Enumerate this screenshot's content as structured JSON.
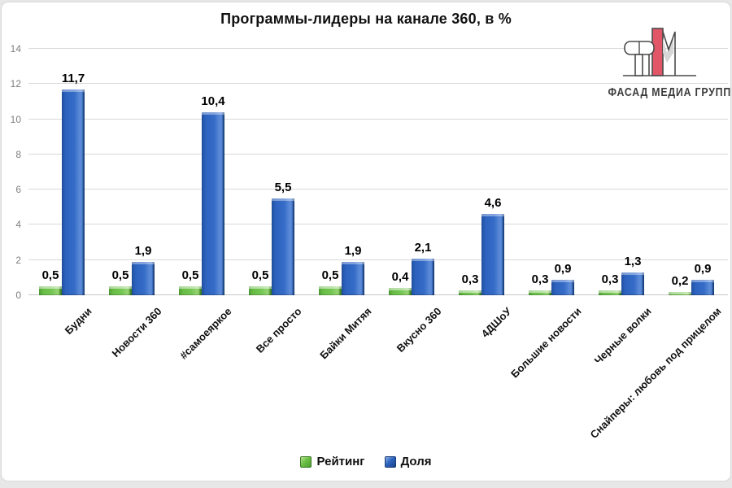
{
  "title": "Программы-лидеры на канале 360, в %",
  "logo": {
    "text": "ФАСАД МЕДИА ГРУПП",
    "accent_color": "#e25767"
  },
  "colors": {
    "rating_green": "#6abf45",
    "share_blue": "#2d63bf",
    "gridline": "#d9d9d9",
    "axis_text": "#7f7f7f",
    "background": "#ffffff"
  },
  "chart_data": {
    "type": "bar",
    "title": "Программы-лидеры на канале 360, в %",
    "categories": [
      "Будни",
      "Новости 360",
      "#самоеяркое",
      "Все просто",
      "Байки Митяя",
      "Вкусно 360",
      "4ДШоУ",
      "Большие новости",
      "Черные волки",
      "Снайперы: любовь под прицелом"
    ],
    "series": [
      {
        "name": "Рейтинг",
        "color": "#6abf45",
        "values": [
          0.5,
          0.5,
          0.5,
          0.5,
          0.5,
          0.4,
          0.3,
          0.3,
          0.3,
          0.2
        ],
        "labels": [
          "0,5",
          "0,5",
          "0,5",
          "0,5",
          "0,5",
          "0,4",
          "0,3",
          "0,3",
          "0,3",
          "0,2"
        ]
      },
      {
        "name": "Доля",
        "color": "#2d63bf",
        "values": [
          11.7,
          1.9,
          10.4,
          5.5,
          1.9,
          2.1,
          4.6,
          0.9,
          1.3,
          0.9
        ],
        "labels": [
          "11,7",
          "1,9",
          "10,4",
          "5,5",
          "1,9",
          "2,1",
          "4,6",
          "0,9",
          "1,3",
          "0,9"
        ]
      }
    ],
    "xlabel": "",
    "ylabel": "",
    "ylim": [
      0,
      14
    ],
    "yticks": [
      0,
      2,
      4,
      6,
      8,
      10,
      12,
      14
    ],
    "grid": true,
    "legend_position": "bottom"
  }
}
